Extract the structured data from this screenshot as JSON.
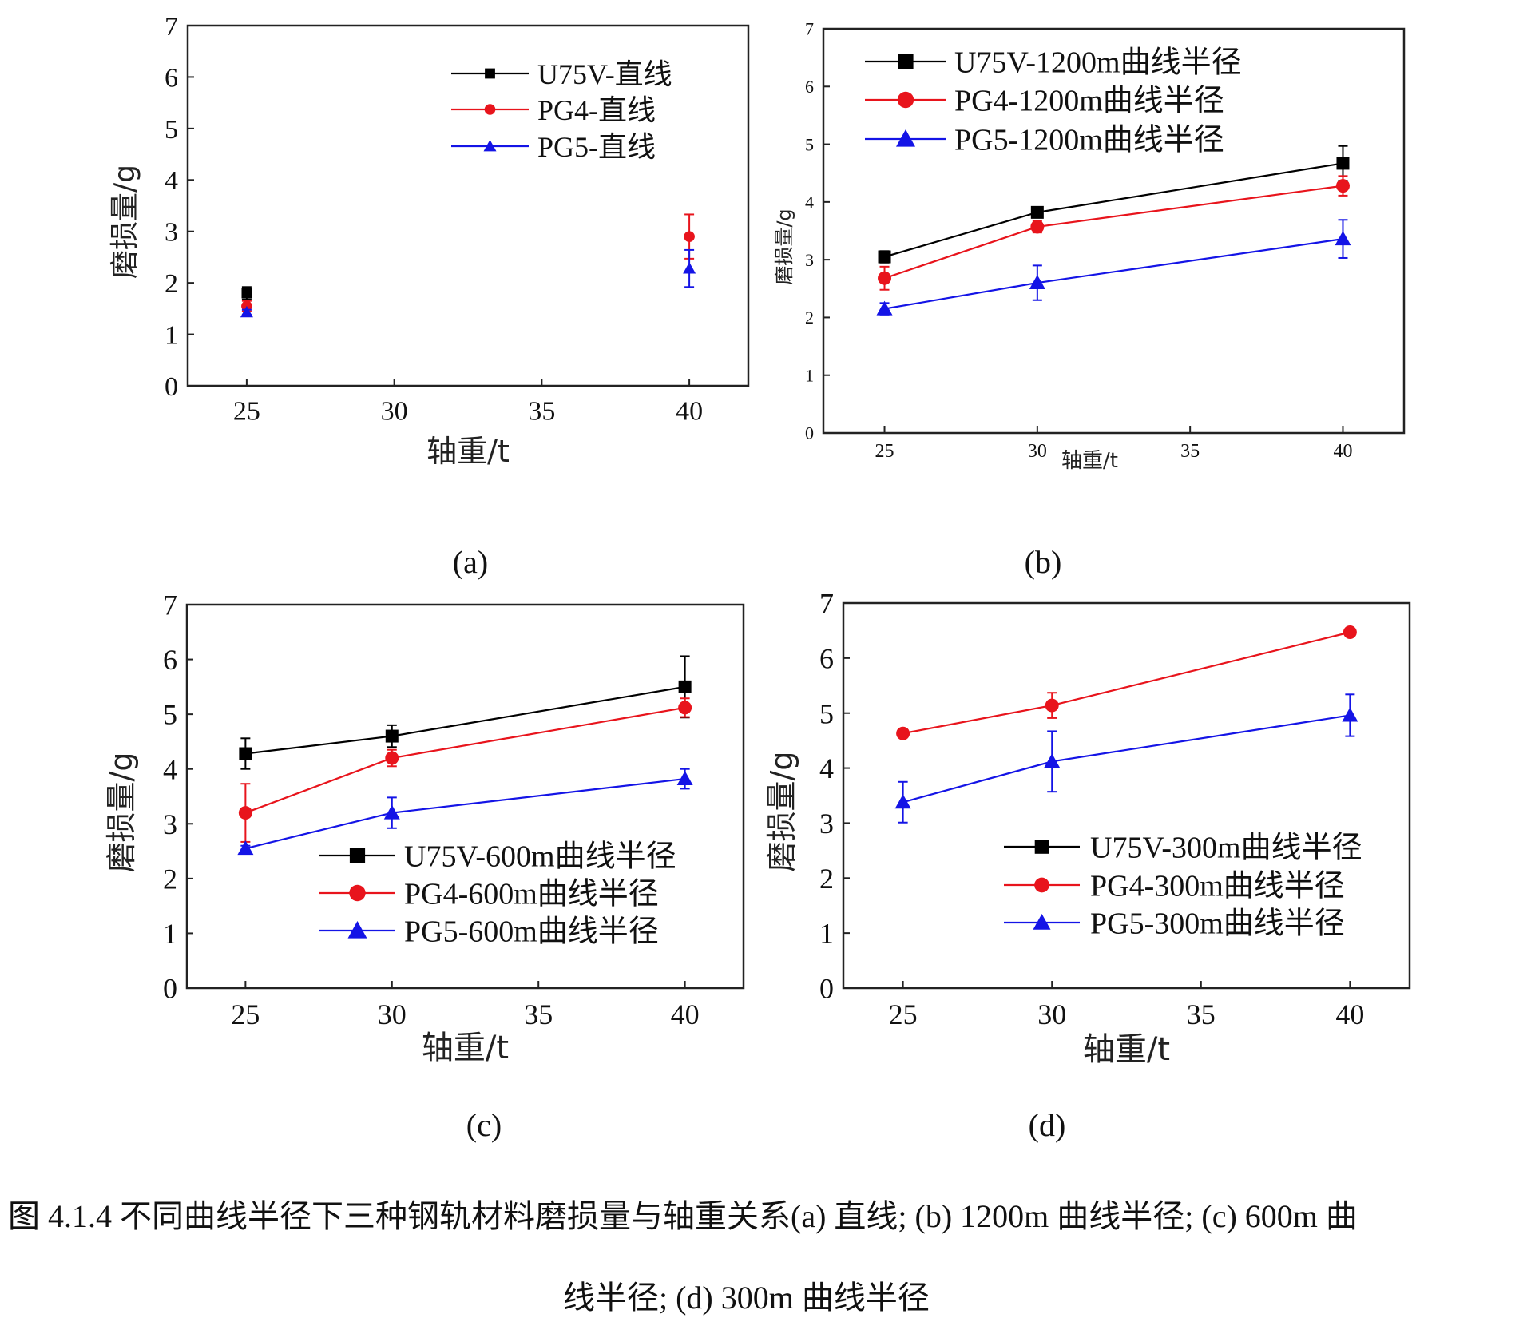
{
  "chart_data": [
    {
      "type": "line",
      "panel": "(a)",
      "xlabel": "轴重/t",
      "ylabel": "磨损量/g",
      "xlim": [
        23,
        42
      ],
      "ylim": [
        0,
        7
      ],
      "xticks": [
        25,
        30,
        35,
        40
      ],
      "yticks": [
        0,
        1,
        2,
        3,
        4,
        5,
        6,
        7
      ],
      "legend_position": "top-right",
      "show_lines": false,
      "series": [
        {
          "name": "U75V-直线",
          "color": "#000000",
          "marker": "square",
          "x": [
            25
          ],
          "y": [
            1.8
          ],
          "err": [
            0.12
          ]
        },
        {
          "name": "PG4-直线",
          "color": "#e8141c",
          "marker": "circle",
          "x": [
            25,
            40
          ],
          "y": [
            1.55,
            2.9
          ],
          "err": [
            0.1,
            0.43
          ]
        },
        {
          "name": "PG5-直线",
          "color": "#1414e6",
          "marker": "triangle",
          "x": [
            25,
            40
          ],
          "y": [
            1.43,
            2.28
          ],
          "err": [
            0.05,
            0.36
          ]
        }
      ]
    },
    {
      "type": "line",
      "panel": "(b)",
      "xlabel": "轴重/t",
      "ylabel": "磨损量/g",
      "xlim": [
        23,
        42
      ],
      "ylim": [
        0,
        7
      ],
      "xticks": [
        25,
        30,
        35,
        40
      ],
      "yticks": [
        0,
        1,
        2,
        3,
        4,
        5,
        6,
        7
      ],
      "legend_position": "top-left",
      "show_lines": true,
      "series": [
        {
          "name": "U75V-1200m曲线半径",
          "color": "#000000",
          "marker": "square",
          "x": [
            25,
            30,
            40
          ],
          "y": [
            3.05,
            3.82,
            4.67
          ],
          "err": [
            0.1,
            0.05,
            0.3
          ]
        },
        {
          "name": "PG4-1200m曲线半径",
          "color": "#e8141c",
          "marker": "circle",
          "x": [
            25,
            30,
            40
          ],
          "y": [
            2.68,
            3.57,
            4.28
          ],
          "err": [
            0.2,
            0.1,
            0.17
          ]
        },
        {
          "name": "PG5-1200m曲线半径",
          "color": "#1414e6",
          "marker": "triangle",
          "x": [
            25,
            30,
            40
          ],
          "y": [
            2.15,
            2.6,
            3.36
          ],
          "err": [
            0.1,
            0.3,
            0.33
          ]
        }
      ]
    },
    {
      "type": "line",
      "panel": "(c)",
      "xlabel": "轴重/t",
      "ylabel": "磨损量/g",
      "xlim": [
        23,
        42
      ],
      "ylim": [
        0,
        7
      ],
      "xticks": [
        25,
        30,
        35,
        40
      ],
      "yticks": [
        0,
        1,
        2,
        3,
        4,
        5,
        6,
        7
      ],
      "legend_position": "bottom-right",
      "show_lines": true,
      "series": [
        {
          "name": "U75V-600m曲线半径",
          "color": "#000000",
          "marker": "square",
          "x": [
            25,
            30,
            40
          ],
          "y": [
            4.28,
            4.6,
            5.5
          ],
          "err": [
            0.28,
            0.2,
            0.56
          ]
        },
        {
          "name": "PG4-600m曲线半径",
          "color": "#e8141c",
          "marker": "circle",
          "x": [
            25,
            30,
            40
          ],
          "y": [
            3.2,
            4.2,
            5.12
          ],
          "err": [
            0.53,
            0.15,
            0.17
          ]
        },
        {
          "name": "PG5-600m曲线半径",
          "color": "#1414e6",
          "marker": "triangle",
          "x": [
            25,
            30,
            40
          ],
          "y": [
            2.55,
            3.2,
            3.82
          ],
          "err": [
            0.05,
            0.28,
            0.18
          ]
        }
      ]
    },
    {
      "type": "line",
      "panel": "(d)",
      "xlabel": "轴重/t",
      "ylabel": "磨损量/g",
      "xlim": [
        23,
        42
      ],
      "ylim": [
        0,
        7
      ],
      "xticks": [
        25,
        30,
        35,
        40
      ],
      "yticks": [
        0,
        1,
        2,
        3,
        4,
        5,
        6,
        7
      ],
      "legend_position": "bottom-right",
      "show_lines": true,
      "series": [
        {
          "name": "U75V-300m曲线半径",
          "color": "#000000",
          "marker": "square",
          "x": [],
          "y": [],
          "err": []
        },
        {
          "name": "PG4-300m曲线半径",
          "color": "#e8141c",
          "marker": "circle",
          "x": [
            25,
            30,
            40
          ],
          "y": [
            4.63,
            5.14,
            6.47
          ],
          "err": [
            0,
            0.23,
            0
          ]
        },
        {
          "name": "PG5-300m曲线半径",
          "color": "#1414e6",
          "marker": "triangle",
          "x": [
            25,
            30,
            40
          ],
          "y": [
            3.38,
            4.12,
            4.96
          ],
          "err": [
            0.37,
            0.55,
            0.38
          ]
        }
      ]
    }
  ],
  "panel_labels": [
    "(a)",
    "(b)",
    "(c)",
    "(d)"
  ],
  "caption": {
    "line1": "图 4.1.4  不同曲线半径下三种钢轨材料磨损量与轴重关系(a)  直线; (b) 1200m 曲线半径; (c) 600m 曲",
    "line2": "线半径; (d) 300m 曲线半径"
  }
}
